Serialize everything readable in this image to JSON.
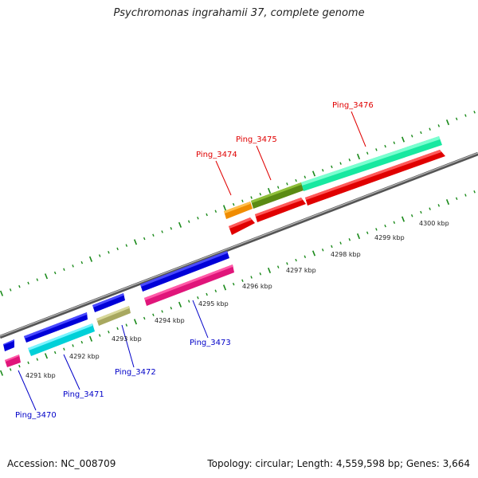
{
  "title": "Psychromonas ingrahamii 37, complete genome",
  "footer": {
    "accession": "Accession: NC_008709",
    "summary": "Topology: circular; Length: 4,559,598 bp; Genes: 3,664"
  },
  "scale_labels": [
    "4291 kbp",
    "4292 kbp",
    "4293 kbp",
    "4294 kbp",
    "4295 kbp",
    "4296 kbp",
    "4297 kbp",
    "4298 kbp",
    "4299 kbp",
    "4300 kbp"
  ],
  "gene_labels": [
    {
      "text": "Ping_3470",
      "color": "#0000c8"
    },
    {
      "text": "Ping_3471",
      "color": "#0000c8"
    },
    {
      "text": "Ping_3472",
      "color": "#0000c8"
    },
    {
      "text": "Ping_3473",
      "color": "#0000c8"
    },
    {
      "text": "Ping_3474",
      "color": "#e00000"
    },
    {
      "text": "Ping_3475",
      "color": "#e00000"
    },
    {
      "text": "Ping_3476",
      "color": "#e00000"
    }
  ],
  "colors": {
    "backbone": "#7a7a7a",
    "ticks": "#1a8a1a",
    "forward_label": "#e00000",
    "reverse_label": "#0000c8"
  }
}
